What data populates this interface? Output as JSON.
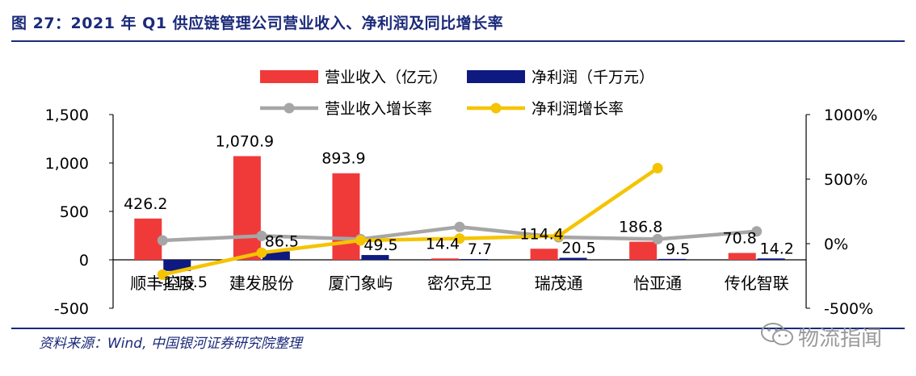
{
  "figure_title": "图 27：2021 年 Q1 供应链管理公司营业收入、净利润及同比增长率",
  "source_note": "资料来源：Wind, 中国银河证券研究院整理",
  "watermark": "物流指闻",
  "colors": {
    "revenue": "#f03a3a",
    "net_profit": "#0e1a80",
    "revenue_growth": "#a6a6a6",
    "profit_growth": "#f5c400",
    "title": "#1b2a7a"
  },
  "chart_data": {
    "type": "bar",
    "categories": [
      "顺丰控股",
      "建发股份",
      "厦门象屿",
      "密尔克卫",
      "瑞茂通",
      "怡亚通",
      "传化智联"
    ],
    "series": [
      {
        "name": "营业收入（亿元）",
        "kind": "bar",
        "axis": "left",
        "values": [
          426.2,
          1070.9,
          893.9,
          14.4,
          114.4,
          186.8,
          70.8
        ],
        "labels": [
          "426.2",
          "1,070.9",
          "893.9",
          "14.4",
          "114.4",
          "186.8",
          "70.8"
        ]
      },
      {
        "name": "净利润（千万元）",
        "kind": "bar",
        "axis": "left",
        "values": [
          -115.5,
          86.5,
          49.5,
          7.7,
          20.5,
          9.5,
          14.2
        ],
        "labels": [
          "-115.5",
          "86.5",
          "49.5",
          "7.7",
          "20.5",
          "9.5",
          "14.2"
        ]
      },
      {
        "name": "营业收入增长率",
        "kind": "line",
        "axis": "right",
        "values": [
          25,
          60,
          35,
          130,
          50,
          35,
          95
        ]
      },
      {
        "name": "净利润增长率",
        "kind": "line",
        "axis": "right",
        "values": [
          -240,
          -70,
          25,
          40,
          60,
          585,
          null
        ]
      }
    ],
    "y_left": {
      "min": -500,
      "max": 1500,
      "ticks": [
        -500,
        0,
        500,
        1000,
        1500
      ],
      "tick_labels": [
        "-500",
        "0",
        "500",
        "1,000",
        "1,500"
      ]
    },
    "y_right": {
      "min": -500,
      "max": 1000,
      "ticks": [
        -500,
        0,
        500,
        1000
      ],
      "tick_labels": [
        "-500%",
        "0%",
        "500%",
        "1000%"
      ]
    },
    "legend_position": "top-center",
    "grid": false
  }
}
